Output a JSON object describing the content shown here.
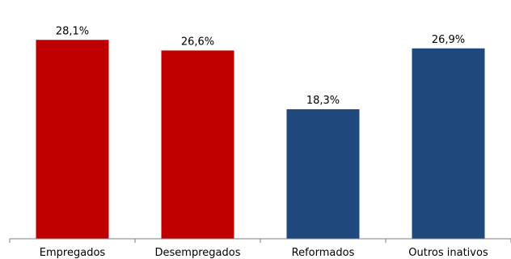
{
  "chart_data": {
    "type": "bar",
    "categories": [
      "Empregados",
      "Desempregados",
      "Reformados",
      "Outros inativos"
    ],
    "values": [
      28.1,
      26.6,
      18.3,
      26.9
    ],
    "value_labels": [
      "28,1%",
      "26,6%",
      "18,3%",
      "26,9%"
    ],
    "colors": [
      "#C00000",
      "#C00000",
      "#1F497D",
      "#1F497D"
    ],
    "axis_color": "#7F7F7F",
    "title": "",
    "xlabel": "",
    "ylabel": "",
    "ylim": [
      0,
      30
    ],
    "grid": false,
    "legend": "none"
  }
}
